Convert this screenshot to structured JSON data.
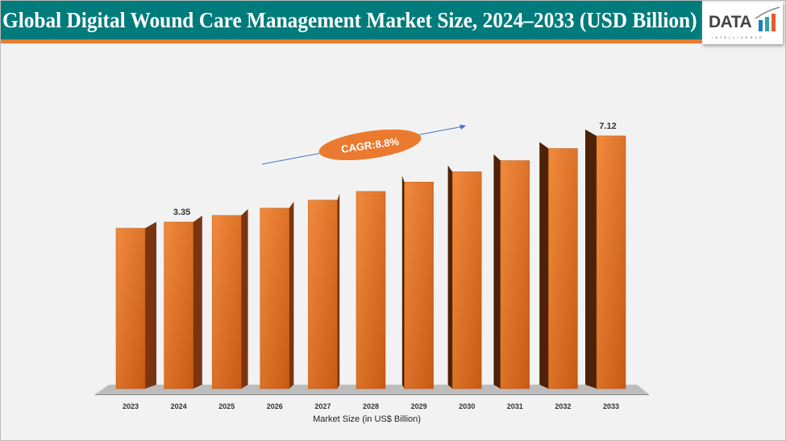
{
  "header": {
    "title": "Global Digital Wound Care Management Market Size, 2024–2033 (USD Billion)"
  },
  "logo": {
    "text": "DATA",
    "subtext": "INTELLIGENCE"
  },
  "colors": {
    "title_bg": "#007b7b",
    "accent": "#e87d2f",
    "bar": "#d0631a",
    "bar_side": "#7a3510"
  },
  "chart_data": {
    "type": "bar",
    "categories": [
      "2023",
      "2024",
      "2025",
      "2026",
      "2027",
      "2028",
      "2029",
      "2030",
      "2031",
      "2032",
      "2033"
    ],
    "values": [
      3.08,
      3.35,
      3.64,
      3.96,
      4.31,
      4.69,
      5.1,
      5.55,
      6.04,
      6.57,
      7.12
    ],
    "data_labels": {
      "1": "3.35",
      "10": "7.12"
    },
    "xlabel": "Market Size (in US$ Billion)",
    "annotation": "CAGR:8.8%",
    "grid": false,
    "style": "3d-column"
  }
}
